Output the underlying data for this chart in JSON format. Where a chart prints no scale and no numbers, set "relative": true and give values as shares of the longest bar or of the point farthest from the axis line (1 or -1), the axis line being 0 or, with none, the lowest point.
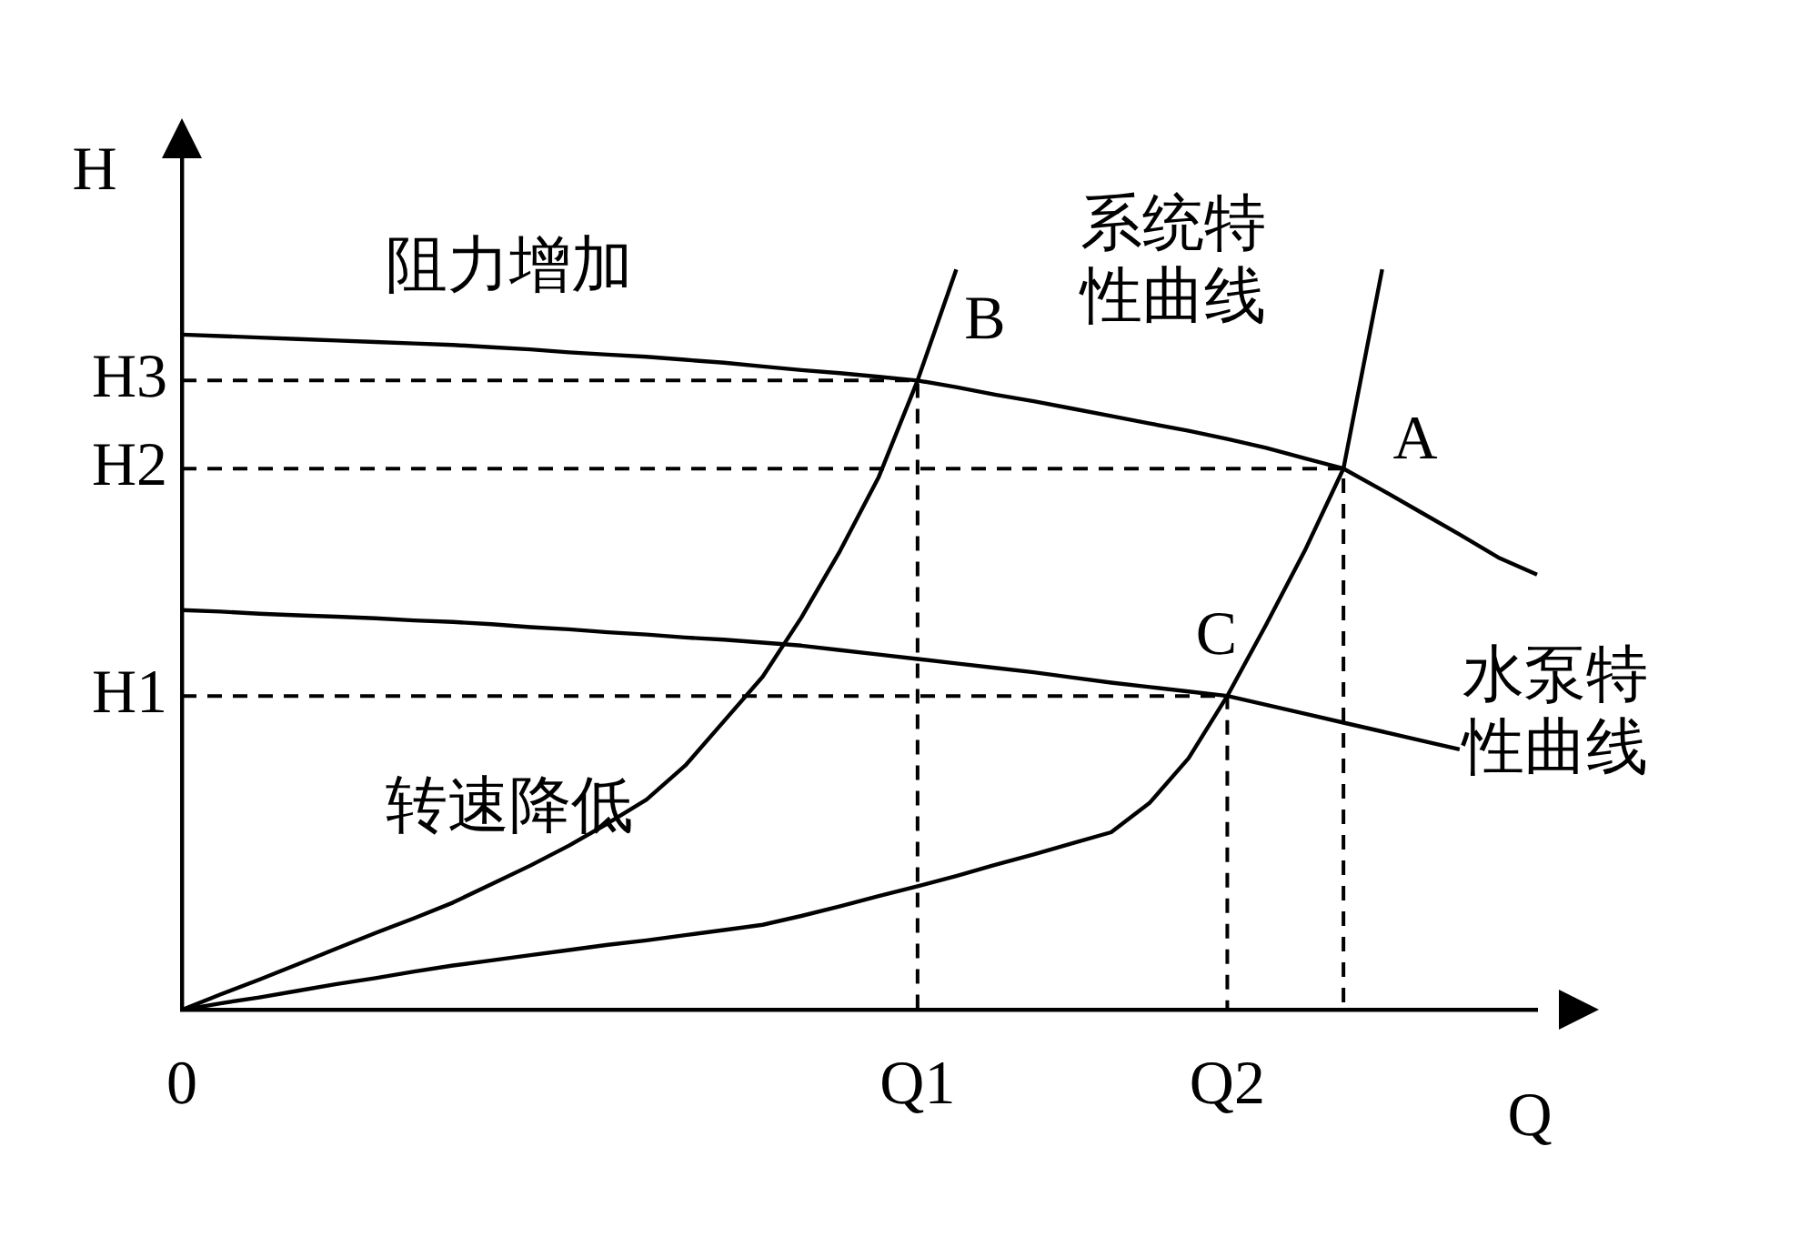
{
  "chart_data": {
    "type": "line",
    "relative": true,
    "xlabel": "Q",
    "ylabel": "H",
    "categories": [
      "0",
      null,
      null,
      null,
      null,
      null,
      null,
      null,
      null,
      null,
      null,
      null,
      null,
      null,
      null,
      null,
      null,
      null,
      null,
      "Q1",
      null,
      null,
      null,
      null,
      null,
      null,
      null,
      "Q2",
      null,
      null,
      null,
      null,
      null,
      null,
      null,
      null
    ],
    "series": [
      {
        "color": "#000000",
        "values": [
          0.912,
          0.91,
          0.908,
          0.906,
          0.904,
          0.902,
          0.9,
          0.898,
          0.895,
          0.892,
          0.888,
          0.885,
          0.882,
          0.878,
          0.874,
          0.869,
          0.864,
          0.86,
          0.855,
          0.85,
          0.841,
          0.831,
          0.822,
          0.812,
          0.802,
          0.792,
          0.782,
          0.771,
          0.759,
          0.745,
          0.731,
          0.702,
          0.672,
          0.642,
          0.611,
          0.588
        ]
      },
      {
        "color": "#000000",
        "values": [
          0.54,
          0.538,
          0.535,
          0.533,
          0.531,
          0.529,
          0.526,
          0.524,
          0.521,
          0.517,
          0.514,
          0.51,
          0.507,
          0.503,
          0.5,
          0.496,
          0.492,
          0.486,
          0.48,
          0.474,
          0.468,
          0.462,
          0.456,
          0.449,
          0.442,
          0.436,
          0.43,
          0.424,
          0.412,
          0.4,
          0.388,
          0.376,
          0.364,
          0.352,
          null,
          null
        ]
      },
      {
        "color": "#000000",
        "values": [
          0,
          0.021,
          0.041,
          0.062,
          0.083,
          0.104,
          0.124,
          0.145,
          0.17,
          0.195,
          0.222,
          0.252,
          0.284,
          0.33,
          0.39,
          0.45,
          0.53,
          0.62,
          0.72,
          0.85,
          1.0,
          null,
          null,
          null,
          null,
          null,
          null,
          null,
          null,
          null,
          null,
          null,
          null,
          null,
          null,
          null
        ]
      },
      {
        "color": "#000000",
        "values": [
          0,
          0.009,
          0.017,
          0.026,
          0.035,
          0.043,
          0.052,
          0.06,
          0.067,
          0.074,
          0.081,
          0.088,
          0.094,
          0.101,
          0.108,
          0.115,
          0.127,
          0.14,
          0.154,
          0.167,
          0.181,
          0.196,
          0.21,
          0.225,
          0.24,
          0.28,
          0.34,
          0.424,
          0.52,
          0.62,
          0.731,
          1.0,
          null,
          null,
          null,
          null
        ]
      }
    ],
    "ref_lines": [
      {
        "axis": "y",
        "value": 0.85,
        "label": "H3",
        "line_style": "dashed"
      },
      {
        "axis": "y",
        "value": 0.731,
        "label": "H2",
        "line_style": "dashed"
      },
      {
        "axis": "y",
        "value": 0.424,
        "label": "H1",
        "line_style": "dashed"
      }
    ],
    "annotations": [
      "系统特性曲线",
      "水泵特性曲线",
      "阻力增加",
      "转速降低",
      "A",
      {
        "text": "B",
        "x": "Q1",
        "y": 0.85
      },
      {
        "text": "C",
        "x": "Q2",
        "y": 0.424
      }
    ],
    "legend": false,
    "marker": "none"
  }
}
